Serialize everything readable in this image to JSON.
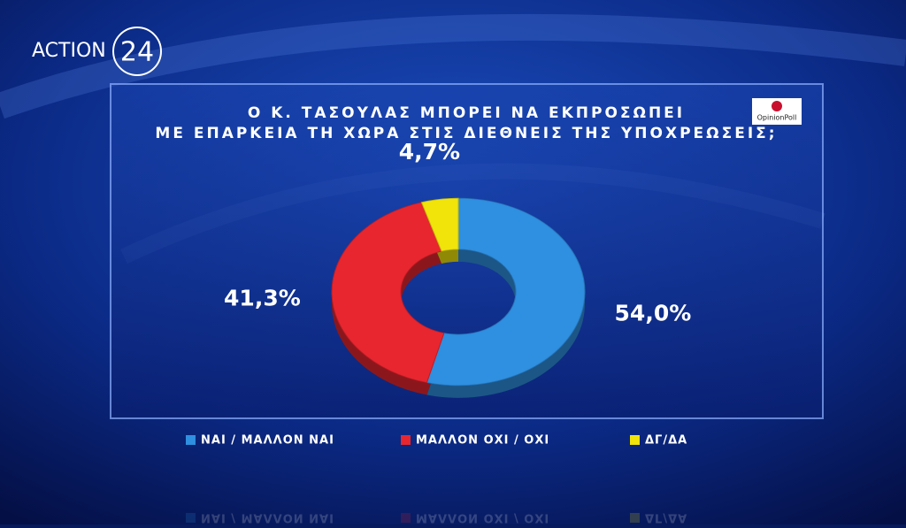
{
  "chart_data": {
    "type": "pie",
    "title": [
      "Ο Κ. ΤΑΣΟΥΛΑΣ ΜΠΟΡΕΙ ΝΑ ΕΚΠΡΟΣΩΠΕΙ",
      "ΜΕ ΕΠΑΡΚΕΙΑ ΤΗ ΧΩΡΑ ΣΤΙΣ ΔΙΕΘΝΕΙΣ ΤΗΣ ΥΠΟΧΡΕΩΣΕΙΣ;"
    ],
    "categories": [
      "ΝΑΙ / ΜΑΛΛΟΝ ΝΑΙ",
      "ΜΑΛΛΟΝ ΟΧΙ / ΟΧΙ",
      "ΔΓ/ΔΑ"
    ],
    "values": [
      54.0,
      41.3,
      4.7
    ],
    "value_labels": [
      "54,0%",
      "41,3%",
      "4,7%"
    ],
    "colors": [
      "#2f8fe0",
      "#e8262f",
      "#f0e40a"
    ],
    "donut": true
  },
  "logo": {
    "brand": "ACTION",
    "number": "24"
  },
  "source": "OpinionPoll"
}
